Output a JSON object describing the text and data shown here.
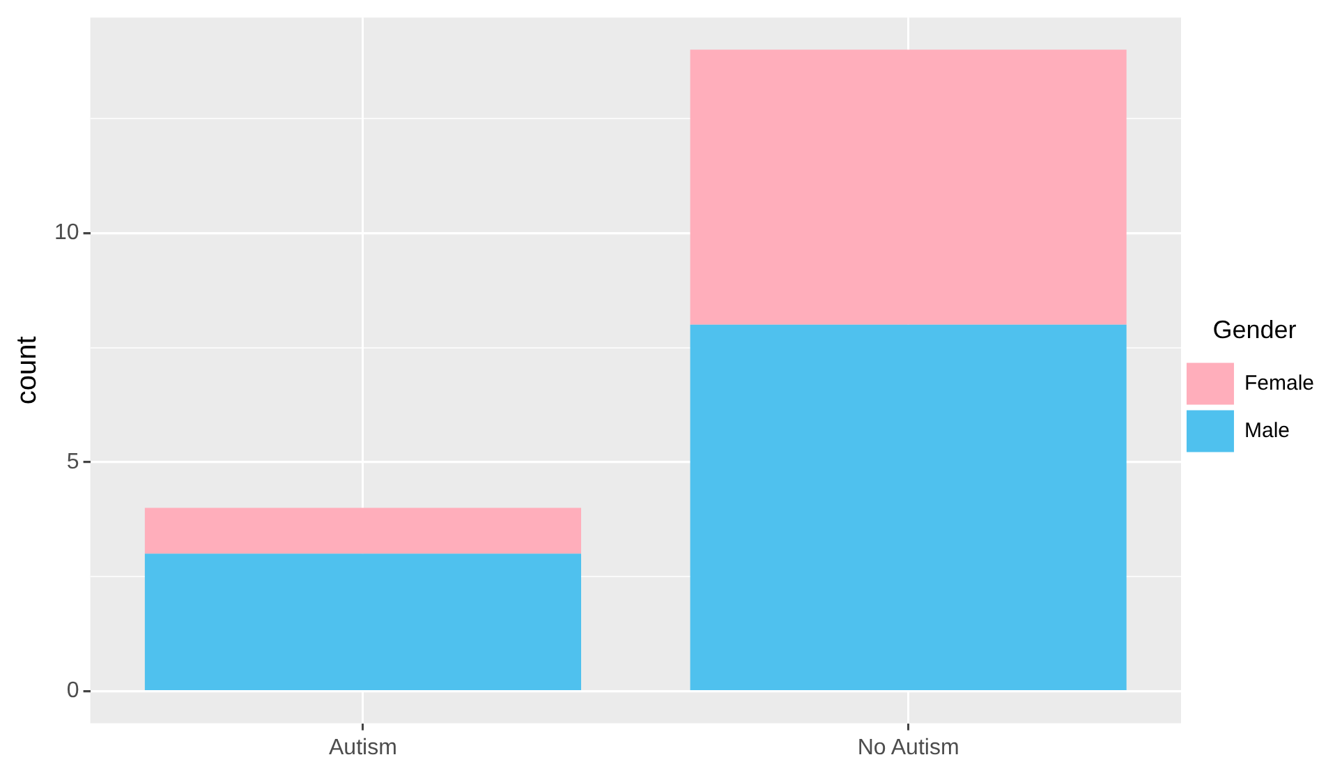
{
  "chart_data": {
    "type": "bar",
    "ylabel": "count",
    "legend_title": "Gender",
    "categories": [
      "Autism",
      "No Autism"
    ],
    "stacked": true,
    "series": [
      {
        "name": "Male",
        "color": "#4fc1ee",
        "values": [
          3,
          8
        ]
      },
      {
        "name": "Female",
        "color": "#ffaebb",
        "values": [
          1,
          6
        ]
      }
    ],
    "ylim": [
      -0.7,
      14.7
    ],
    "yticks": [
      0,
      {
        "value": 2.5,
        "label": null
      },
      5,
      {
        "value": 7.5,
        "label": null
      },
      10,
      {
        "value": 12.5,
        "label": null
      }
    ],
    "grid": true,
    "legend": "right"
  }
}
